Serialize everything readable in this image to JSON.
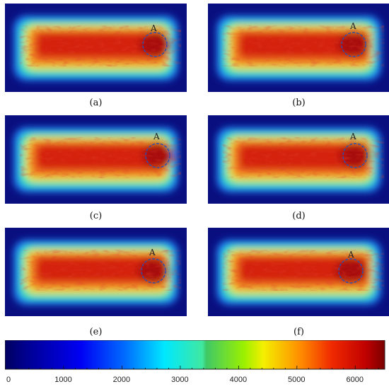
{
  "panels": [
    {
      "id": "a",
      "caption": "(a)",
      "marker": "A"
    },
    {
      "id": "b",
      "caption": "(b)",
      "marker": "A"
    },
    {
      "id": "c",
      "caption": "(c)",
      "marker": "A"
    },
    {
      "id": "d",
      "caption": "(d)",
      "marker": "A"
    },
    {
      "id": "e",
      "caption": "(e)",
      "marker": "A"
    },
    {
      "id": "f",
      "caption": "(f)",
      "marker": "A"
    }
  ],
  "colorbar": {
    "min": 0,
    "max": 6500,
    "ticks": [
      "0",
      "1000",
      "2000",
      "3000",
      "4000",
      "5000",
      "6000"
    ],
    "tick_values": [
      0,
      1000,
      2000,
      3000,
      4000,
      5000,
      6000
    ]
  },
  "colors": {
    "background": "#0a0f80",
    "outer": "#1a7ff0",
    "mid": "#39e1b8",
    "yellow": "#e8e23a",
    "orange": "#f07820",
    "red": "#d42010",
    "circle": "#2a4fb0"
  }
}
